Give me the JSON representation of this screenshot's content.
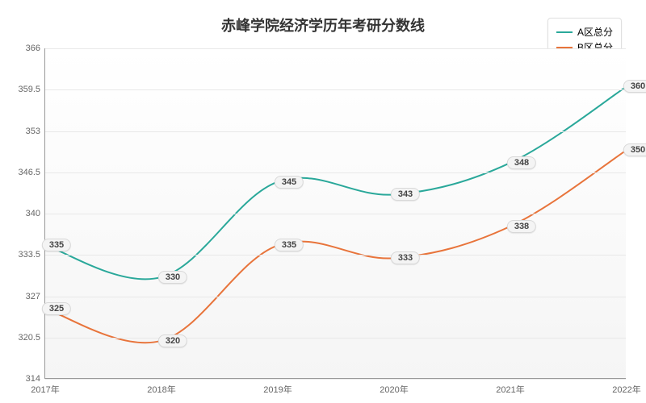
{
  "chart": {
    "type": "line",
    "title": "赤峰学院经济学历年考研分数线",
    "title_fontsize": 18,
    "background_gradient_top": "#ffffff",
    "background_gradient_bottom": "#f5f5f5",
    "grid_color": "#e8e8e8",
    "axis_color": "#999999",
    "text_color": "#666666",
    "categories": [
      "2017年",
      "2018年",
      "2019年",
      "2020年",
      "2021年",
      "2022年"
    ],
    "ylim": [
      314,
      366
    ],
    "ytick_step": 6.5,
    "yticks": [
      314,
      320.5,
      327,
      333.5,
      340,
      346.5,
      353,
      359.5,
      366
    ],
    "label_fontsize": 11,
    "line_width": 2,
    "badge_bg": "#f4f4f4",
    "badge_border": "#d8d8d8",
    "curve_tension": 0.35,
    "series": [
      {
        "name": "A区总分",
        "color": "#2aa89a",
        "values": [
          335,
          330,
          345,
          343,
          348,
          360
        ]
      },
      {
        "name": "B区总分",
        "color": "#e8743b",
        "values": [
          325,
          320,
          335,
          333,
          338,
          350
        ]
      }
    ]
  }
}
